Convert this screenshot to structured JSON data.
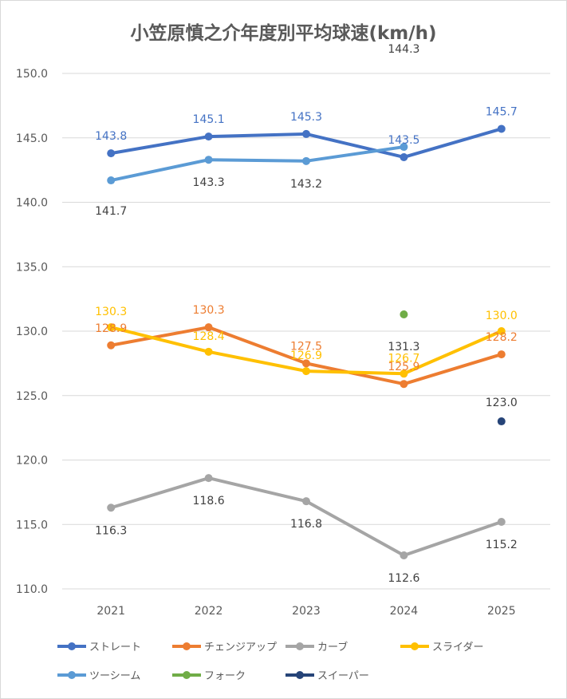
{
  "chart_data": {
    "type": "line",
    "title": "小笠原慎之介年度別平均球速(km/h)",
    "categories": [
      "2021",
      "2022",
      "2023",
      "2024",
      "2025"
    ],
    "ylim": [
      110.0,
      150.0
    ],
    "yticks": [
      "110.0",
      "115.0",
      "120.0",
      "125.0",
      "130.0",
      "135.0",
      "140.0",
      "145.0",
      "150.0"
    ],
    "grid": true,
    "legend_position": "bottom",
    "series": [
      {
        "name": "ストレート",
        "color": "#4472C4",
        "values": [
          143.8,
          145.1,
          145.3,
          143.5,
          145.7
        ],
        "labels": [
          "143.8",
          "145.1",
          "145.3",
          "143.5",
          "145.7"
        ],
        "label_color": "#4472C4"
      },
      {
        "name": "チェンジアップ",
        "color": "#ED7D31",
        "values": [
          128.9,
          130.3,
          127.5,
          125.9,
          128.2
        ],
        "labels": [
          "128.9",
          "130.3",
          "127.5",
          "125.9",
          "128.2"
        ],
        "label_color": "#ED7D31"
      },
      {
        "name": "カーブ",
        "color": "#A5A5A5",
        "values": [
          116.3,
          118.6,
          116.8,
          112.6,
          115.2
        ],
        "labels": [
          "116.3",
          "118.6",
          "116.8",
          "112.6",
          "115.2"
        ],
        "label_color": "#404040"
      },
      {
        "name": "スライダー",
        "color": "#FFC000",
        "values": [
          130.3,
          128.4,
          126.9,
          126.7,
          130.0
        ],
        "labels": [
          "130.3",
          "128.4",
          "126.9",
          "126.7",
          "130.0"
        ],
        "label_color": "#FFC000"
      },
      {
        "name": "ツーシーム",
        "color": "#5B9BD5",
        "values": [
          141.7,
          143.3,
          143.2,
          144.3,
          null
        ],
        "labels": [
          "141.7",
          "143.3",
          "143.2",
          "144.3",
          null
        ],
        "label_color": "#404040"
      },
      {
        "name": "フォーク",
        "color": "#70AD47",
        "values": [
          null,
          null,
          null,
          131.3,
          null
        ],
        "labels": [
          null,
          null,
          null,
          "131.3",
          null
        ],
        "label_color": "#404040"
      },
      {
        "name": "スイーパー",
        "color": "#264478",
        "values": [
          null,
          null,
          null,
          null,
          123.0
        ],
        "labels": [
          null,
          null,
          null,
          null,
          "123.0"
        ],
        "label_color": "#404040"
      }
    ]
  }
}
